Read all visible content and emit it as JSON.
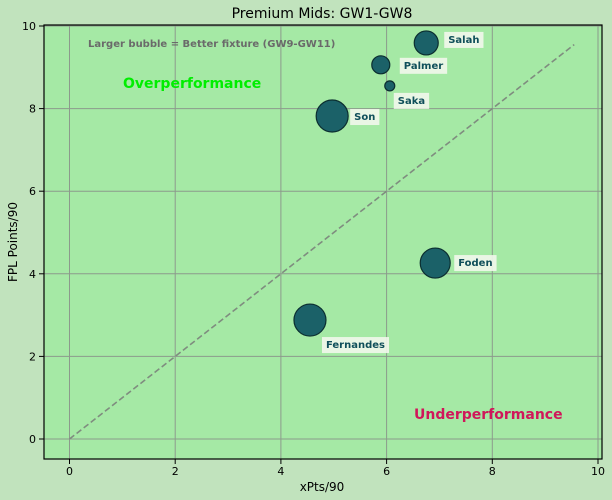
{
  "chart_data": {
    "type": "scatter",
    "title": "Premium Mids: GW1-GW8",
    "xlabel": "xPts/90",
    "ylabel": "FPL Points/90",
    "xlim": [
      -0.5,
      10.1
    ],
    "ylim": [
      -0.5,
      10.05
    ],
    "xticks": [
      0,
      2,
      4,
      6,
      8,
      10
    ],
    "yticks": [
      0,
      2,
      4,
      6,
      8,
      10
    ],
    "grid": true,
    "annotations": {
      "note": "Larger bubble = Better fixture (GW9-GW11)",
      "over": "Overperformance",
      "under": "Underperformance"
    },
    "reference_line": {
      "style": "dashed",
      "from": [
        0,
        0
      ],
      "to": [
        9.55,
        9.55
      ]
    },
    "points": [
      {
        "name": "Salah",
        "x": 6.75,
        "y": 9.59,
        "size": 12
      },
      {
        "name": "Palmer",
        "x": 5.89,
        "y": 9.06,
        "size": 9
      },
      {
        "name": "Saka",
        "x": 6.06,
        "y": 8.55,
        "size": 5
      },
      {
        "name": "Son",
        "x": 4.97,
        "y": 7.82,
        "size": 16
      },
      {
        "name": "Foden",
        "x": 6.92,
        "y": 4.26,
        "size": 15
      },
      {
        "name": "Fernandes",
        "x": 4.55,
        "y": 2.88,
        "size": 16
      }
    ],
    "colors": {
      "figure_bg": "#c1e3bd",
      "plot_bg": "#a5e9a5",
      "bubble": "#1b6168",
      "bubble_edge": "#0b2e30",
      "label_text": "#0f4f5a",
      "over_text": "#00ee00",
      "under_text": "#d0175a",
      "grid": "#8c9a8c",
      "reference_line": "#7a8a7a"
    }
  }
}
